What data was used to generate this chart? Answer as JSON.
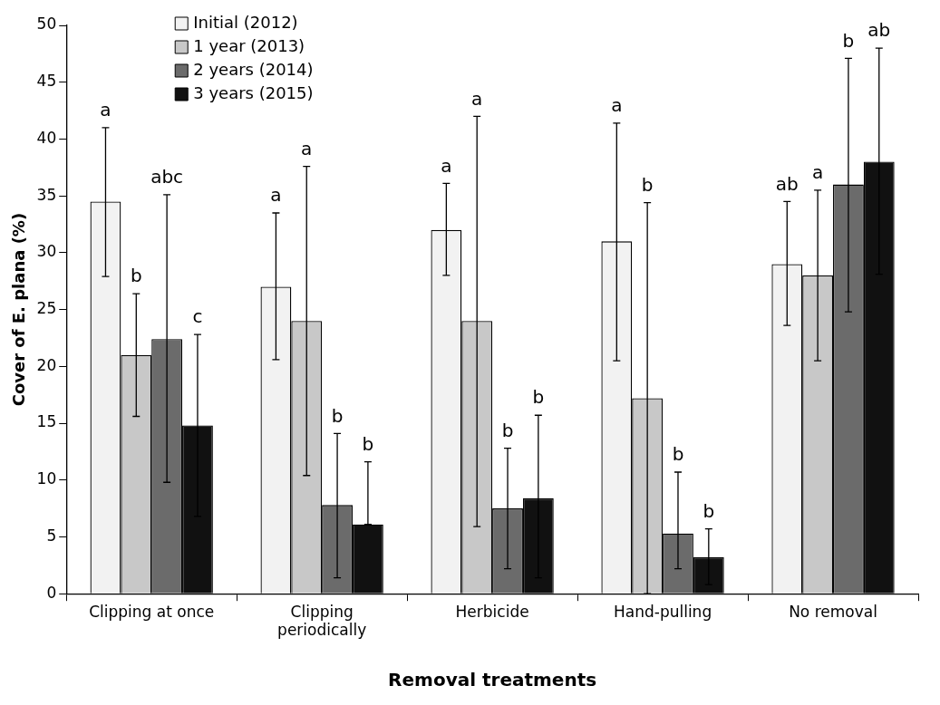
{
  "chart_data": {
    "type": "bar",
    "xlabel": "Removal treatments",
    "ylabel": "Cover of E. plana (%)",
    "categories": [
      "Clipping at once",
      "Clipping periodically",
      "Herbicide",
      "Hand-pulling",
      "No removal"
    ],
    "series": [
      {
        "name": "Initial (2012)",
        "color": "#f2f2f2",
        "values": [
          34.5,
          27,
          32,
          31,
          29
        ],
        "errors": [
          [
            27.9,
            41
          ],
          [
            20.6,
            33.5
          ],
          [
            28,
            36.1
          ],
          [
            20.5,
            41.4
          ],
          [
            23.6,
            34.5
          ]
        ]
      },
      {
        "name": "1 year (2013)",
        "color": "#c8c8c8",
        "values": [
          21,
          24,
          24,
          17.2,
          28
        ],
        "errors": [
          [
            15.6,
            26.4
          ],
          [
            10.4,
            37.6
          ],
          [
            5.9,
            42
          ],
          [
            0,
            34.4
          ],
          [
            20.5,
            35.5
          ]
        ]
      },
      {
        "name": "2 years (2014)",
        "color": "#6b6b6b",
        "values": [
          22.4,
          7.8,
          7.5,
          5.3,
          36
        ],
        "errors": [
          [
            9.8,
            35.1
          ],
          [
            1.4,
            14.1
          ],
          [
            2.2,
            12.8
          ],
          [
            2.2,
            10.7
          ],
          [
            24.8,
            47.1
          ]
        ]
      },
      {
        "name": "3 years (2015)",
        "color": "#111111",
        "values": [
          14.8,
          6.1,
          8.4,
          3.2,
          38
        ],
        "errors": [
          [
            6.8,
            22.8
          ],
          [
            6.1,
            11.6
          ],
          [
            1.4,
            15.7
          ],
          [
            0.8,
            5.7
          ],
          [
            28.1,
            48
          ]
        ]
      }
    ],
    "annotations": [
      "a",
      "b",
      "abc",
      "c",
      "a",
      "a",
      "b",
      "b",
      "a",
      "a",
      "b",
      "b",
      "a",
      "b",
      "b",
      "b",
      "ab",
      "a",
      "b",
      "ab"
    ],
    "ylim": [
      0,
      50
    ],
    "yticks": [
      0,
      5,
      10,
      15,
      20,
      25,
      30,
      35,
      40,
      45,
      50
    ],
    "grid": false,
    "legend": "top left"
  }
}
